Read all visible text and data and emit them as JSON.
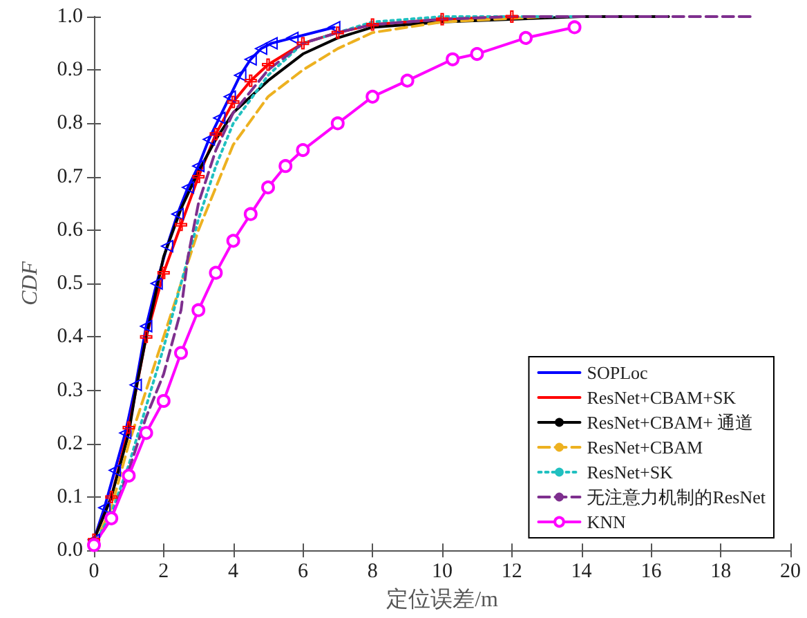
{
  "chart_data": {
    "type": "line",
    "xlabel": "定位误差/m",
    "ylabel": "CDF",
    "xlim": [
      0,
      20
    ],
    "xticks": [
      0,
      2,
      4,
      6,
      8,
      10,
      12,
      14,
      16,
      18,
      20
    ],
    "ylim": [
      0,
      1
    ],
    "yticks": [
      {
        "value": 0,
        "label": "0.0"
      },
      0.1,
      0.2,
      0.3,
      0.4,
      0.5,
      0.6,
      0.7,
      0.8,
      0.9,
      {
        "value": 1,
        "label": "1.0"
      }
    ],
    "grid": false,
    "legend": "bottom right",
    "series": [
      {
        "name": "SOPLoc",
        "color": "#0000ff",
        "marker": "triangle",
        "line_style": "solid",
        "x": [
          0,
          0.3,
          0.6,
          0.9,
          1.2,
          1.5,
          1.8,
          2.1,
          2.4,
          2.7,
          3,
          3.3,
          3.6,
          3.9,
          4.2,
          4.5,
          4.8,
          5.1,
          5.7,
          6.9
        ],
        "values": [
          0.02,
          0.08,
          0.15,
          0.22,
          0.31,
          0.42,
          0.5,
          0.57,
          0.63,
          0.68,
          0.72,
          0.77,
          0.81,
          0.85,
          0.89,
          0.92,
          0.94,
          0.95,
          0.96,
          0.98
        ]
      },
      {
        "name": "ResNet+CBAM+SK",
        "color": "#ff0000",
        "marker": "cross",
        "line_style": "solid",
        "x": [
          0,
          0.5,
          1,
          1.5,
          2,
          2.5,
          3,
          3.5,
          4,
          4.5,
          5,
          6,
          7,
          8,
          10,
          12
        ],
        "values": [
          0.02,
          0.1,
          0.23,
          0.4,
          0.52,
          0.61,
          0.7,
          0.78,
          0.84,
          0.88,
          0.91,
          0.95,
          0.97,
          0.985,
          0.995,
          1
        ]
      },
      {
        "name": "ResNet+CBAM+ 通道",
        "color": "#000000",
        "marker": "none",
        "line_style": "solid",
        "x": [
          0,
          0.5,
          1,
          1.2,
          1.5,
          2,
          2.5,
          3,
          3.5,
          4,
          5,
          6,
          7,
          8,
          10,
          14,
          16.5
        ],
        "values": [
          0.02,
          0.1,
          0.22,
          0.3,
          0.4,
          0.55,
          0.64,
          0.71,
          0.77,
          0.82,
          0.88,
          0.93,
          0.96,
          0.98,
          0.99,
          1,
          1
        ]
      },
      {
        "name": "ResNet+CBAM",
        "color": "#edb120",
        "marker": "none",
        "line_style": "dashed",
        "x": [
          0,
          0.5,
          1,
          1.5,
          2,
          2.5,
          3,
          3.5,
          4,
          5,
          6,
          7,
          8,
          10,
          13
        ],
        "values": [
          0.01,
          0.08,
          0.2,
          0.3,
          0.4,
          0.5,
          0.6,
          0.68,
          0.76,
          0.85,
          0.9,
          0.94,
          0.97,
          0.99,
          1
        ]
      },
      {
        "name": "ResNet+SK",
        "color": "#20c0c0",
        "marker": "none",
        "line_style": "dotted",
        "x": [
          0,
          0.5,
          1,
          1.5,
          2,
          2.5,
          3,
          3.5,
          4,
          5,
          6,
          7,
          8,
          10,
          14
        ],
        "values": [
          0.01,
          0.07,
          0.16,
          0.27,
          0.38,
          0.5,
          0.62,
          0.72,
          0.8,
          0.89,
          0.95,
          0.97,
          0.99,
          1,
          1
        ]
      },
      {
        "name": "无注意力机制的ResNet",
        "color": "#7e2f8e",
        "marker": "none",
        "line_style": "dashed",
        "x": [
          0,
          0.5,
          1,
          1.5,
          2,
          2.5,
          2.7,
          3,
          3.5,
          4,
          5,
          6,
          7,
          8,
          10,
          12,
          19
        ],
        "values": [
          0.01,
          0.06,
          0.15,
          0.25,
          0.33,
          0.45,
          0.55,
          0.65,
          0.75,
          0.82,
          0.9,
          0.95,
          0.97,
          0.985,
          0.995,
          1,
          1
        ]
      },
      {
        "name": "KNN",
        "color": "#ff00ff",
        "marker": "circle",
        "line_style": "solid",
        "x": [
          0,
          0.5,
          1,
          1.5,
          2,
          2.5,
          3,
          3.5,
          4,
          4.5,
          5,
          5.5,
          6,
          7,
          8,
          9,
          10.3,
          11,
          12.4,
          13.8
        ],
        "values": [
          0.01,
          0.06,
          0.14,
          0.22,
          0.28,
          0.37,
          0.45,
          0.52,
          0.58,
          0.63,
          0.68,
          0.72,
          0.75,
          0.8,
          0.85,
          0.88,
          0.92,
          0.93,
          0.96,
          0.98
        ]
      }
    ]
  }
}
